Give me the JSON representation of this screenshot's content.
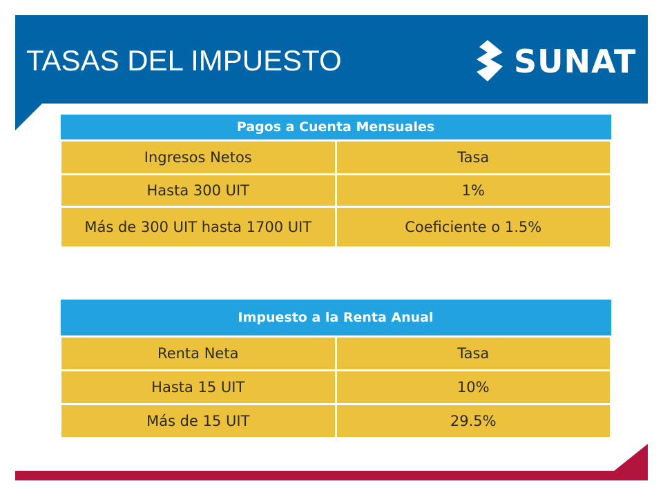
{
  "header": {
    "title": "TASAS DEL IMPUESTO",
    "logo_text": "SUNAT",
    "background_color": "#0064a7"
  },
  "footer": {
    "color": "#b3143e"
  },
  "tables": {
    "monthly": {
      "title": "Pagos a Cuenta Mensuales",
      "columns": [
        "Ingresos Netos",
        "Tasa"
      ],
      "rows": [
        [
          "Hasta 300 UIT",
          "1%"
        ],
        [
          "Más de 300 UIT hasta 1700 UIT",
          "Coeficiente o 1.5%"
        ]
      ]
    },
    "annual": {
      "title": "Impuesto a la Renta Anual",
      "columns": [
        "Renta Neta",
        "Tasa"
      ],
      "rows": [
        [
          "Hasta 15 UIT",
          "10%"
        ],
        [
          "Más de 15 UIT",
          "29.5%"
        ]
      ]
    }
  },
  "colors": {
    "table_header": "#23a2e0",
    "table_cell": "#ecc13c"
  }
}
